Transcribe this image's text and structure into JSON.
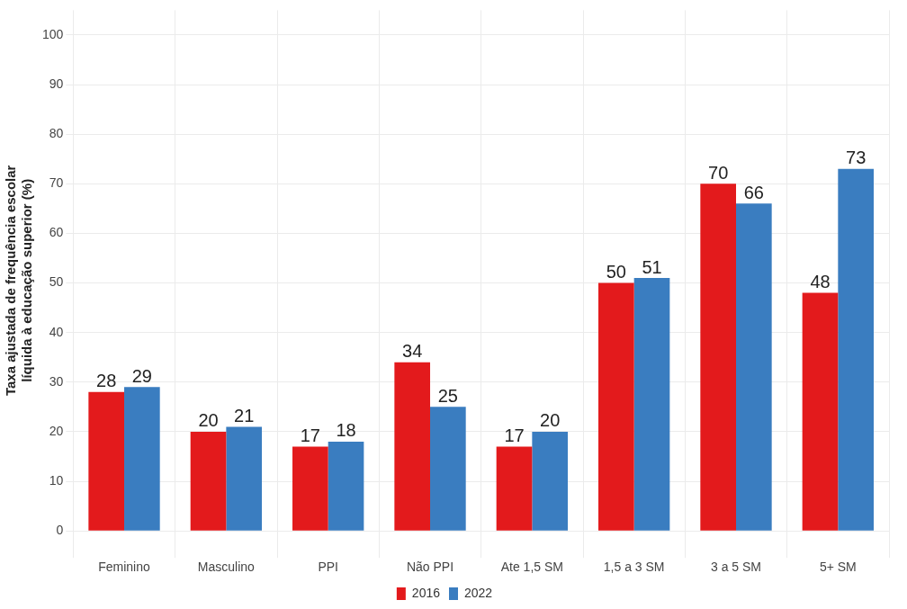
{
  "chart_data": {
    "type": "bar",
    "ylabel": "Taxa ajustada de frequência escolar\nlíquida à educação superior (%)",
    "categories": [
      "Feminino",
      "Masculino",
      "PPI",
      "Não PPI",
      "Ate 1,5 SM",
      "1,5 a 3 SM",
      "3 a 5 SM",
      "5+ SM"
    ],
    "series": [
      {
        "name": "2016",
        "color": "#e31a1c",
        "values": [
          28,
          20,
          17,
          34,
          17,
          50,
          70,
          48
        ]
      },
      {
        "name": "2022",
        "color": "#3a7dc0",
        "values": [
          29,
          21,
          18,
          25,
          20,
          51,
          66,
          73
        ]
      }
    ],
    "ylim": [
      -4,
      105
    ],
    "yticks": [
      0,
      10,
      20,
      30,
      40,
      50,
      60,
      70,
      80,
      90,
      100
    ],
    "grid": true,
    "legend": "bottom",
    "data_labels": true
  }
}
